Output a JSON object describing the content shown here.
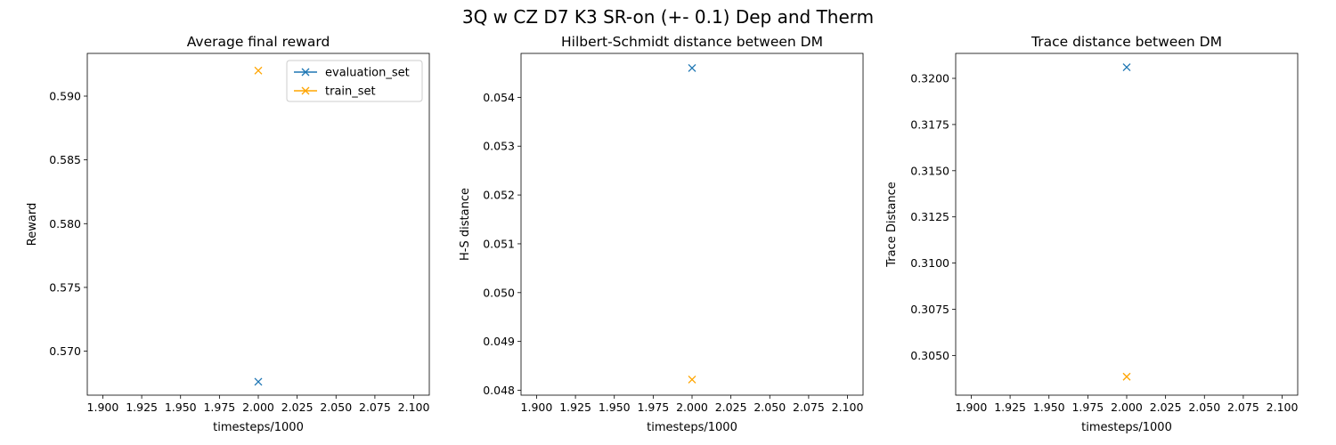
{
  "suptitle": "3Q w CZ D7 K3 SR-on (+- 0.1) Dep and Therm",
  "colors": {
    "evaluation_set": "#1f77b4",
    "train_set": "#ffa500"
  },
  "chart_data": [
    {
      "type": "scatter",
      "title": "Average final reward",
      "xlabel": "timesteps/1000",
      "ylabel": "Reward",
      "x": [
        2.0
      ],
      "xlim": [
        1.89,
        2.11
      ],
      "ylim": [
        0.56655,
        0.59335
      ],
      "xticks": [
        "1.900",
        "1.925",
        "1.950",
        "1.975",
        "2.000",
        "2.025",
        "2.050",
        "2.075",
        "2.100"
      ],
      "xtick_values": [
        1.9,
        1.925,
        1.95,
        1.975,
        2.0,
        2.025,
        2.05,
        2.075,
        2.1
      ],
      "yticks": [
        "0.570",
        "0.575",
        "0.580",
        "0.585",
        "0.590"
      ],
      "ytick_values": [
        0.57,
        0.575,
        0.58,
        0.585,
        0.59
      ],
      "series": [
        {
          "name": "evaluation_set",
          "marker": "x",
          "values": [
            0.5676
          ]
        },
        {
          "name": "train_set",
          "marker": "x",
          "values": [
            0.592
          ]
        }
      ],
      "legend": "top-right"
    },
    {
      "type": "scatter",
      "title": "Hilbert-Schmidt distance between DM",
      "xlabel": "timesteps/1000",
      "ylabel": "H-S distance",
      "x": [
        2.0
      ],
      "xlim": [
        1.89,
        2.11
      ],
      "ylim": [
        0.0479,
        0.0549
      ],
      "xticks": [
        "1.900",
        "1.925",
        "1.950",
        "1.975",
        "2.000",
        "2.025",
        "2.050",
        "2.075",
        "2.100"
      ],
      "xtick_values": [
        1.9,
        1.925,
        1.95,
        1.975,
        2.0,
        2.025,
        2.05,
        2.075,
        2.1
      ],
      "yticks": [
        "0.048",
        "0.049",
        "0.050",
        "0.051",
        "0.052",
        "0.053",
        "0.054"
      ],
      "ytick_values": [
        0.048,
        0.049,
        0.05,
        0.051,
        0.052,
        0.053,
        0.054
      ],
      "series": [
        {
          "name": "evaluation_set",
          "marker": "x",
          "values": [
            0.0546
          ]
        },
        {
          "name": "train_set",
          "marker": "x",
          "values": [
            0.04822
          ]
        }
      ]
    },
    {
      "type": "scatter",
      "title": "Trace distance between DM",
      "xlabel": "timesteps/1000",
      "ylabel": "Trace Distance",
      "x": [
        2.0
      ],
      "xlim": [
        1.89,
        2.11
      ],
      "ylim": [
        0.30285,
        0.32135
      ],
      "xticks": [
        "1.900",
        "1.925",
        "1.950",
        "1.975",
        "2.000",
        "2.025",
        "2.050",
        "2.075",
        "2.100"
      ],
      "xtick_values": [
        1.9,
        1.925,
        1.95,
        1.975,
        2.0,
        2.025,
        2.05,
        2.075,
        2.1
      ],
      "yticks": [
        "0.3050",
        "0.3075",
        "0.3100",
        "0.3125",
        "0.3150",
        "0.3175",
        "0.3200"
      ],
      "ytick_values": [
        0.305,
        0.3075,
        0.31,
        0.3125,
        0.315,
        0.3175,
        0.32
      ],
      "series": [
        {
          "name": "evaluation_set",
          "marker": "x",
          "values": [
            0.3206
          ]
        },
        {
          "name": "train_set",
          "marker": "x",
          "values": [
            0.30385
          ]
        }
      ]
    }
  ]
}
